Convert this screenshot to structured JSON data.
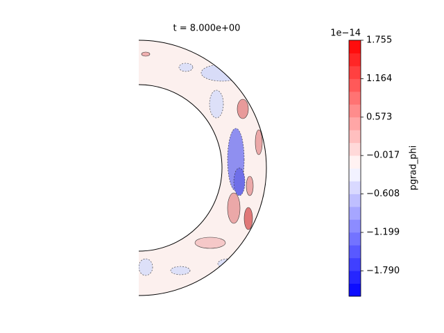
{
  "chart_data": {
    "type": "contour",
    "title": "t = 8.000e+00",
    "colorbar": {
      "label": "pgrad_phi",
      "offset_text": "1e−14",
      "ylim": [
        -2.18,
        1.755
      ],
      "yticks": [
        1.755,
        1.164,
        0.573,
        {
          "value": -0.017,
          "label": "−0.017"
        },
        {
          "value": -0.608,
          "label": "−0.608"
        },
        {
          "value": -1.199,
          "label": "−1.199"
        },
        {
          "value": -1.79,
          "label": "−1.790"
        }
      ],
      "colors": [
        "#0000ff",
        "#ffffff",
        "#ff0000"
      ]
    }
  }
}
